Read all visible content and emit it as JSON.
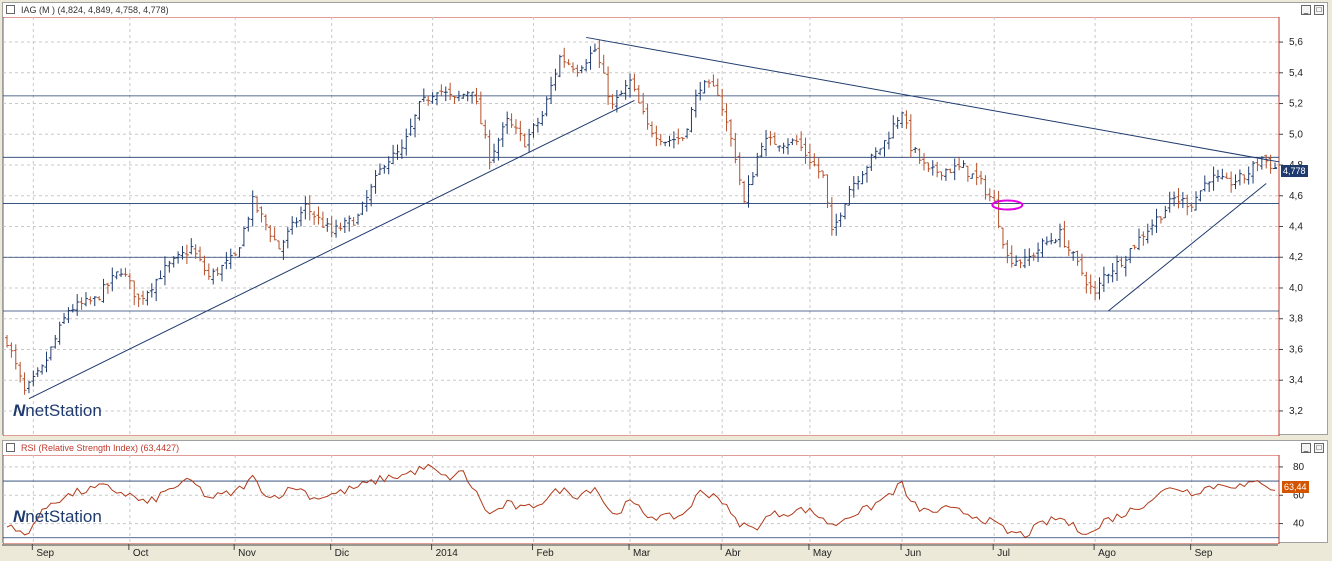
{
  "price_panel": {
    "title": "IAG (M ) (4,824, 4,849, 4,758, 4,778)",
    "last_price_label": "4,778",
    "logo_text": "netStation"
  },
  "rsi_panel": {
    "title": "RSI (Relative Strength Index) (63,4427)",
    "last_value_label": "63,44",
    "logo_text": "netStation"
  },
  "chart_data": [
    {
      "type": "line",
      "title": "IAG (M ) (4,824, 4,849, 4,758, 4,778)",
      "ylim": [
        3.05,
        5.75
      ],
      "y_ticks": [
        "3,2",
        "3,4",
        "3,6",
        "3,8",
        "4,0",
        "4,2",
        "4,4",
        "4,6",
        "4,8",
        "5,0",
        "5,2",
        "5,4",
        "5,6"
      ],
      "y_tick_values": [
        3.2,
        3.4,
        3.6,
        3.8,
        4.0,
        4.2,
        4.4,
        4.6,
        4.8,
        5.0,
        5.2,
        5.4,
        5.6
      ],
      "x_ticks": [
        "Sep",
        "Oct",
        "Nov",
        "Dic",
        "2014",
        "Feb",
        "Mar",
        "Abr",
        "May",
        "Jun",
        "Jul",
        "Ago",
        "Sep"
      ],
      "x_tick_index": [
        6,
        28,
        52,
        74,
        97,
        120,
        142,
        163,
        183,
        204,
        225,
        248,
        270
      ],
      "n_bars": 290,
      "series": [
        {
          "close_path": [
            [
              0,
              3.66
            ],
            [
              4,
              3.32
            ],
            [
              8,
              3.47
            ],
            [
              14,
              3.86
            ],
            [
              20,
              3.92
            ],
            [
              26,
              4.12
            ],
            [
              30,
              3.92
            ],
            [
              36,
              4.12
            ],
            [
              42,
              4.26
            ],
            [
              46,
              4.07
            ],
            [
              52,
              4.2
            ],
            [
              56,
              4.56
            ],
            [
              62,
              4.26
            ],
            [
              68,
              4.53
            ],
            [
              74,
              4.36
            ],
            [
              80,
              4.46
            ],
            [
              86,
              4.82
            ],
            [
              90,
              4.89
            ],
            [
              94,
              5.18
            ],
            [
              98,
              5.3
            ],
            [
              102,
              5.22
            ],
            [
              106,
              5.3
            ],
            [
              110,
              4.85
            ],
            [
              114,
              5.08
            ],
            [
              118,
              4.95
            ],
            [
              122,
              5.12
            ],
            [
              126,
              5.5
            ],
            [
              130,
              5.43
            ],
            [
              134,
              5.55
            ],
            [
              138,
              5.18
            ],
            [
              142,
              5.34
            ],
            [
              146,
              5.05
            ],
            [
              150,
              4.96
            ],
            [
              154,
              4.98
            ],
            [
              158,
              5.32
            ],
            [
              162,
              5.28
            ],
            [
              166,
              4.86
            ],
            [
              168,
              4.55
            ],
            [
              172,
              4.95
            ],
            [
              176,
              4.95
            ],
            [
              180,
              4.95
            ],
            [
              186,
              4.72
            ],
            [
              188,
              4.35
            ],
            [
              192,
              4.65
            ],
            [
              196,
              4.8
            ],
            [
              200,
              4.95
            ],
            [
              204,
              5.16
            ],
            [
              206,
              4.92
            ],
            [
              210,
              4.75
            ],
            [
              214,
              4.77
            ],
            [
              218,
              4.78
            ],
            [
              222,
              4.68
            ],
            [
              225,
              4.55
            ],
            [
              228,
              4.2
            ],
            [
              232,
              4.17
            ],
            [
              236,
              4.28
            ],
            [
              240,
              4.35
            ],
            [
              244,
              4.15
            ],
            [
              248,
              3.95
            ],
            [
              250,
              4.08
            ],
            [
              254,
              4.18
            ],
            [
              258,
              4.32
            ],
            [
              262,
              4.45
            ],
            [
              266,
              4.58
            ],
            [
              270,
              4.55
            ],
            [
              274,
              4.72
            ],
            [
              278,
              4.68
            ],
            [
              282,
              4.72
            ],
            [
              286,
              4.85
            ],
            [
              289,
              4.78
            ]
          ]
        }
      ],
      "horizontal_lines": [
        5.25,
        4.85,
        4.55,
        4.2,
        3.85
      ],
      "trendlines": [
        {
          "from": [
            5,
            3.28
          ],
          "to": [
            143,
            5.22
          ]
        },
        {
          "from": [
            132,
            5.63
          ],
          "to": [
            290,
            4.82
          ]
        },
        {
          "from": [
            251,
            3.85
          ],
          "to": [
            287,
            4.68
          ]
        }
      ],
      "highlight_ellipse": {
        "x": 228,
        "y": 4.54
      },
      "last_value": 4.778
    },
    {
      "type": "line",
      "title": "RSI (Relative Strength Index) (63,4427)",
      "ylim": [
        27,
        87
      ],
      "y_ticks": [
        "40",
        "60",
        "80"
      ],
      "y_tick_values": [
        40,
        60,
        80
      ],
      "horizontal_lines": [
        70,
        30
      ],
      "series": [
        {
          "name": "RSI",
          "path": [
            [
              0,
              38
            ],
            [
              4,
              32
            ],
            [
              10,
              55
            ],
            [
              16,
              62
            ],
            [
              22,
              66
            ],
            [
              28,
              60
            ],
            [
              32,
              54
            ],
            [
              38,
              66
            ],
            [
              42,
              70
            ],
            [
              46,
              58
            ],
            [
              52,
              62
            ],
            [
              56,
              72
            ],
            [
              60,
              58
            ],
            [
              66,
              66
            ],
            [
              70,
              58
            ],
            [
              76,
              62
            ],
            [
              80,
              66
            ],
            [
              86,
              72
            ],
            [
              90,
              74
            ],
            [
              96,
              80
            ],
            [
              100,
              72
            ],
            [
              104,
              76
            ],
            [
              110,
              46
            ],
            [
              114,
              54
            ],
            [
              118,
              50
            ],
            [
              122,
              56
            ],
            [
              126,
              64
            ],
            [
              130,
              60
            ],
            [
              134,
              66
            ],
            [
              138,
              46
            ],
            [
              142,
              55
            ],
            [
              146,
              46
            ],
            [
              150,
              44
            ],
            [
              154,
              46
            ],
            [
              158,
              62
            ],
            [
              162,
              60
            ],
            [
              166,
              42
            ],
            [
              170,
              36
            ],
            [
              174,
              46
            ],
            [
              178,
              48
            ],
            [
              182,
              50
            ],
            [
              186,
              44
            ],
            [
              188,
              38
            ],
            [
              192,
              46
            ],
            [
              196,
              50
            ],
            [
              200,
              58
            ],
            [
              204,
              68
            ],
            [
              206,
              54
            ],
            [
              210,
              48
            ],
            [
              214,
              50
            ],
            [
              218,
              48
            ],
            [
              222,
              44
            ],
            [
              225,
              40
            ],
            [
              228,
              34
            ],
            [
              232,
              32
            ],
            [
              236,
              40
            ],
            [
              240,
              44
            ],
            [
              244,
              36
            ],
            [
              248,
              34
            ],
            [
              250,
              42
            ],
            [
              254,
              46
            ],
            [
              258,
              52
            ],
            [
              262,
              60
            ],
            [
              266,
              66
            ],
            [
              270,
              62
            ],
            [
              274,
              66
            ],
            [
              278,
              68
            ],
            [
              282,
              66
            ],
            [
              286,
              70
            ],
            [
              289,
              63.44
            ]
          ]
        }
      ],
      "last_value": 63.44
    }
  ]
}
